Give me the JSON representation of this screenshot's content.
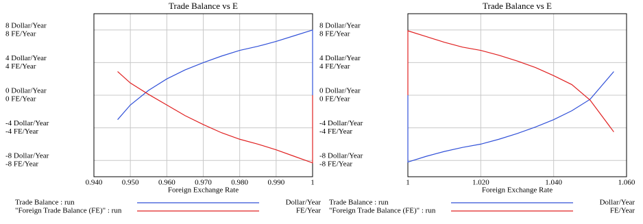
{
  "chart_data": [
    {
      "type": "line",
      "title": "Trade Balance vs E",
      "xlabel": "Foreign Exchange Rate",
      "x": [
        0.9465,
        0.95,
        0.955,
        0.96,
        0.965,
        0.97,
        0.975,
        0.98,
        0.985,
        0.99,
        0.995,
        1.0,
        1.0
      ],
      "series": [
        {
          "name": "Trade Balance : run",
          "unit": "Dollar/Year",
          "color": "#3050d8",
          "axis": "y",
          "values": [
            -3.0,
            -1.2,
            0.6,
            2.0,
            3.1,
            4.0,
            4.8,
            5.5,
            6.0,
            6.6,
            7.3,
            8.0,
            0
          ]
        },
        {
          "name": "\"Foreign Trade Balance (FE)\" : run",
          "unit": "FE/Year",
          "color": "#e02020",
          "axis": "y2",
          "values": [
            2.9,
            1.5,
            0.1,
            -1.2,
            -2.5,
            -3.6,
            -4.6,
            -5.4,
            -6.0,
            -6.7,
            -7.5,
            -8.3,
            0
          ]
        }
      ],
      "xlim": [
        0.94,
        1
      ],
      "xticks": [
        {
          "value": 0.94,
          "label": "0.940"
        },
        {
          "value": 0.95,
          "label": "0.950"
        },
        {
          "value": 0.96,
          "label": "0.960"
        },
        {
          "value": 0.97,
          "label": "0.970"
        },
        {
          "value": 0.98,
          "label": "0.980"
        },
        {
          "value": 0.99,
          "label": "0.990"
        },
        1
      ],
      "ylim": [
        -10,
        10
      ],
      "yticks": [
        {
          "value": 8,
          "label": "8 Dollar/Year"
        },
        {
          "value": 4,
          "label": "4 Dollar/Year"
        },
        {
          "value": 0,
          "label": "0 Dollar/Year"
        },
        {
          "value": -4,
          "label": "-4 Dollar/Year"
        },
        {
          "value": -8,
          "label": "-8 Dollar/Year"
        }
      ],
      "y2lim": [
        -10,
        10
      ],
      "y2ticks": [
        {
          "value": 8,
          "label": "8 FE/Year"
        },
        {
          "value": 4,
          "label": "4 FE/Year"
        },
        {
          "value": 0,
          "label": "0 FE/Year"
        },
        {
          "value": -4,
          "label": "-4 FE/Year"
        },
        {
          "value": -8,
          "label": "-8 FE/Year"
        }
      ],
      "grid": true
    },
    {
      "type": "line",
      "title": "Trade Balance vs E",
      "xlabel": "Foreign Exchange Rate",
      "x": [
        1.0,
        1.0,
        1.005,
        1.01,
        1.015,
        1.02,
        1.025,
        1.03,
        1.035,
        1.04,
        1.045,
        1.05,
        1.0565
      ],
      "series": [
        {
          "name": "Trade Balance : run",
          "unit": "Dollar/Year",
          "color": "#3050d8",
          "axis": "y",
          "values": [
            0,
            -8.2,
            -7.5,
            -6.9,
            -6.4,
            -6.0,
            -5.4,
            -4.7,
            -3.9,
            -3.0,
            -1.9,
            -0.5,
            2.9
          ]
        },
        {
          "name": "\"Foreign Trade Balance (FE)\" : run",
          "unit": "FE/Year",
          "color": "#e02020",
          "axis": "y2",
          "values": [
            0,
            7.9,
            7.2,
            6.5,
            5.9,
            5.5,
            4.9,
            4.2,
            3.4,
            2.4,
            1.3,
            -0.6,
            -4.5
          ]
        }
      ],
      "xlim": [
        1,
        1.06
      ],
      "xticks": [
        1,
        {
          "value": 1.02,
          "label": "1.020"
        },
        {
          "value": 1.04,
          "label": "1.040"
        },
        {
          "value": 1.06,
          "label": "1.060"
        }
      ],
      "ylim": [
        -10,
        10
      ],
      "yticks": [
        {
          "value": 8,
          "label": "8 Dollar/Year"
        },
        {
          "value": 4,
          "label": "4 Dollar/Year"
        },
        {
          "value": 0,
          "label": "0 Dollar/Year"
        },
        {
          "value": -4,
          "label": "-4 Dollar/Year"
        },
        {
          "value": -8,
          "label": "-8 Dollar/Year"
        }
      ],
      "y2lim": [
        -10,
        10
      ],
      "y2ticks": [
        {
          "value": 8,
          "label": "8 FE/Year"
        },
        {
          "value": 4,
          "label": "4 FE/Year"
        },
        {
          "value": 0,
          "label": "0 FE/Year"
        },
        {
          "value": -4,
          "label": "-4 FE/Year"
        },
        {
          "value": -8,
          "label": "-8 FE/Year"
        }
      ],
      "grid": true
    }
  ]
}
